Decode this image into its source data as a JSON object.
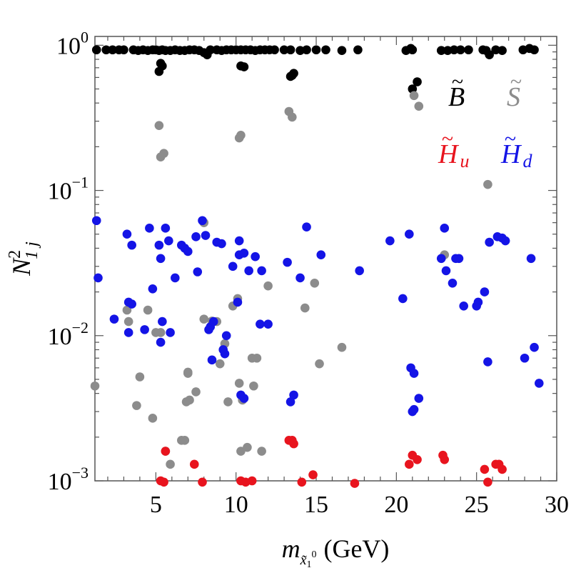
{
  "chart_data": {
    "type": "scatter",
    "title": "",
    "xlabel": "m_{χ̃1^0} (GeV)",
    "xlabel_parts": {
      "var": "m",
      "sub": "x̃",
      "subsub": "1",
      "sup": "0",
      "unit": "(GeV)"
    },
    "ylabel_parts": {
      "var": "N",
      "sup": "2",
      "sub": "1 j"
    },
    "xlim": [
      1.2,
      30
    ],
    "ylim": [
      0.001,
      1.15
    ],
    "yscale": "log",
    "x_ticks": [
      "5",
      "10",
      "15",
      "20",
      "25",
      "30"
    ],
    "x_tick_values": [
      5,
      10,
      15,
      20,
      25,
      30
    ],
    "y_ticks": [
      {
        "value": 1,
        "base": "10",
        "exp": "0"
      },
      {
        "value": 0.1,
        "base": "10",
        "exp": "−1"
      },
      {
        "value": 0.01,
        "base": "10",
        "exp": "−2"
      },
      {
        "value": 0.001,
        "base": "10",
        "exp": "−3"
      }
    ],
    "legend": [
      {
        "symbol": "B",
        "tilde": "~",
        "sub": "",
        "color": "#000000"
      },
      {
        "symbol": "S",
        "tilde": "~",
        "sub": "",
        "color": "#8c8c8c"
      },
      {
        "symbol": "H",
        "tilde": "~",
        "sub": "u",
        "color": "#e8141e"
      },
      {
        "symbol": "H",
        "tilde": "~",
        "sub": "d",
        "color": "#1414e6"
      }
    ],
    "series": [
      {
        "name": "B",
        "color": "#000000",
        "points": [
          [
            1.3,
            0.93
          ],
          [
            1.9,
            0.93
          ],
          [
            2.3,
            0.93
          ],
          [
            2.7,
            0.93
          ],
          [
            3.0,
            0.93
          ],
          [
            3.6,
            0.93
          ],
          [
            3.9,
            0.92
          ],
          [
            4.2,
            0.93
          ],
          [
            4.5,
            0.92
          ],
          [
            4.8,
            0.93
          ],
          [
            5.0,
            0.93
          ],
          [
            5.2,
            0.92
          ],
          [
            5.4,
            0.93
          ],
          [
            5.3,
            0.75
          ],
          [
            5.4,
            0.72
          ],
          [
            5.2,
            0.66
          ],
          [
            5.6,
            0.92
          ],
          [
            5.9,
            0.92
          ],
          [
            6.2,
            0.93
          ],
          [
            6.5,
            0.92
          ],
          [
            6.8,
            0.92
          ],
          [
            7.1,
            0.93
          ],
          [
            7.4,
            0.93
          ],
          [
            7.7,
            0.92
          ],
          [
            8.0,
            0.89
          ],
          [
            8.2,
            0.86
          ],
          [
            8.4,
            0.93
          ],
          [
            8.8,
            0.93
          ],
          [
            9.1,
            0.92
          ],
          [
            9.4,
            0.93
          ],
          [
            9.7,
            0.93
          ],
          [
            10.0,
            0.93
          ],
          [
            10.3,
            0.93
          ],
          [
            10.3,
            0.72
          ],
          [
            10.5,
            0.71
          ],
          [
            10.6,
            0.93
          ],
          [
            10.9,
            0.93
          ],
          [
            11.2,
            0.92
          ],
          [
            11.5,
            0.93
          ],
          [
            11.8,
            0.93
          ],
          [
            12.1,
            0.93
          ],
          [
            12.4,
            0.93
          ],
          [
            13.0,
            0.93
          ],
          [
            13.4,
            0.93
          ],
          [
            13.4,
            0.61
          ],
          [
            13.5,
            0.62
          ],
          [
            13.6,
            0.64
          ],
          [
            14.0,
            0.92
          ],
          [
            14.4,
            0.93
          ],
          [
            15.0,
            0.93
          ],
          [
            15.6,
            0.93
          ],
          [
            16.6,
            0.92
          ],
          [
            17.6,
            0.93
          ],
          [
            20.6,
            0.92
          ],
          [
            20.9,
            0.95
          ],
          [
            21.0,
            0.93
          ],
          [
            21.0,
            0.5
          ],
          [
            21.3,
            0.56
          ],
          [
            22.8,
            0.92
          ],
          [
            23.2,
            0.92
          ],
          [
            23.6,
            0.93
          ],
          [
            24.0,
            0.93
          ],
          [
            24.5,
            0.93
          ],
          [
            25.4,
            0.93
          ],
          [
            25.6,
            0.92
          ],
          [
            25.8,
            0.86
          ],
          [
            26.2,
            0.93
          ],
          [
            26.6,
            0.92
          ],
          [
            27.9,
            0.93
          ],
          [
            28.3,
            0.95
          ],
          [
            28.6,
            0.93
          ]
        ]
      },
      {
        "name": "S",
        "color": "#8c8c8c",
        "points": [
          [
            5.2,
            0.28
          ],
          [
            5.3,
            0.17
          ],
          [
            5.5,
            0.18
          ],
          [
            8.0,
            0.06
          ],
          [
            10.3,
            0.24
          ],
          [
            10.2,
            0.23
          ],
          [
            13.3,
            0.35
          ],
          [
            13.5,
            0.32
          ],
          [
            21.1,
            0.45
          ],
          [
            21.4,
            0.38
          ],
          [
            25.7,
            0.11
          ],
          [
            1.2,
            0.0045
          ],
          [
            3.2,
            0.015
          ],
          [
            3.8,
            0.0033
          ],
          [
            4.0,
            0.0052
          ],
          [
            4.5,
            0.015
          ],
          [
            4.8,
            0.0027
          ],
          [
            5.0,
            0.0105
          ],
          [
            5.3,
            0.0105
          ],
          [
            5.6,
            0.0016
          ],
          [
            5.9,
            0.0013
          ],
          [
            6.6,
            0.0019
          ],
          [
            6.8,
            0.0019
          ],
          [
            7.0,
            0.0056
          ],
          [
            6.9,
            0.0035
          ],
          [
            7.5,
            0.0041
          ],
          [
            7.0,
            0.0055
          ],
          [
            7.1,
            0.0036
          ],
          [
            8.0,
            0.013
          ],
          [
            8.5,
            0.0126
          ],
          [
            8.8,
            0.0125
          ],
          [
            9.0,
            0.0064
          ],
          [
            9.3,
            0.0088
          ],
          [
            9.5,
            0.0035
          ],
          [
            9.8,
            0.016
          ],
          [
            10.1,
            0.018
          ],
          [
            10.3,
            0.0016
          ],
          [
            10.2,
            0.0047
          ],
          [
            10.4,
            0.0036
          ],
          [
            10.7,
            0.0017
          ],
          [
            11.0,
            0.007
          ],
          [
            11.1,
            0.0045
          ],
          [
            11.3,
            0.007
          ],
          [
            11.6,
            0.0016
          ],
          [
            12.0,
            0.022
          ],
          [
            14.3,
            0.0155
          ],
          [
            14.9,
            0.023
          ],
          [
            15.2,
            0.0064
          ],
          [
            16.6,
            0.0083
          ],
          [
            23.0,
            0.036
          ],
          [
            3.3,
            0.0125
          ]
        ]
      },
      {
        "name": "H_u",
        "color": "#e8141e",
        "points": [
          [
            5.3,
            0.001
          ],
          [
            5.5,
            0.00098
          ],
          [
            5.6,
            0.0016
          ],
          [
            7.4,
            0.0013
          ],
          [
            7.9,
            0.00098
          ],
          [
            10.3,
            0.001
          ],
          [
            10.6,
            0.00098
          ],
          [
            11.0,
            0.001
          ],
          [
            13.3,
            0.0019
          ],
          [
            13.5,
            0.0019
          ],
          [
            13.6,
            0.0018
          ],
          [
            14.1,
            0.00098
          ],
          [
            14.8,
            0.0011
          ],
          [
            17.4,
            0.00096
          ],
          [
            20.8,
            0.0013
          ],
          [
            21.0,
            0.0015
          ],
          [
            21.3,
            0.0014
          ],
          [
            22.9,
            0.0015
          ],
          [
            23.0,
            0.0014
          ],
          [
            25.5,
            0.0012
          ],
          [
            25.7,
            0.00098
          ],
          [
            26.2,
            0.0013
          ],
          [
            26.4,
            0.0013
          ],
          [
            26.6,
            0.0012
          ]
        ]
      },
      {
        "name": "H_d",
        "color": "#1414e6",
        "points": [
          [
            1.3,
            0.062
          ],
          [
            1.4,
            0.025
          ],
          [
            2.4,
            0.013
          ],
          [
            3.2,
            0.05
          ],
          [
            3.5,
            0.042
          ],
          [
            3.3,
            0.017
          ],
          [
            3.3,
            0.0105
          ],
          [
            3.5,
            0.0165
          ],
          [
            4.3,
            0.011
          ],
          [
            4.6,
            0.055
          ],
          [
            4.8,
            0.021
          ],
          [
            5.2,
            0.042
          ],
          [
            5.3,
            0.034
          ],
          [
            5.6,
            0.055
          ],
          [
            5.3,
            0.009
          ],
          [
            5.4,
            0.0125
          ],
          [
            5.8,
            0.045
          ],
          [
            5.9,
            0.0105
          ],
          [
            6.2,
            0.025
          ],
          [
            6.6,
            0.042
          ],
          [
            6.8,
            0.04
          ],
          [
            7.0,
            0.038
          ],
          [
            7.5,
            0.048
          ],
          [
            7.6,
            0.0275
          ],
          [
            7.9,
            0.062
          ],
          [
            8.1,
            0.049
          ],
          [
            8.3,
            0.011
          ],
          [
            8.4,
            0.0115
          ],
          [
            8.5,
            0.0068
          ],
          [
            8.6,
            0.0125
          ],
          [
            8.8,
            0.044
          ],
          [
            9.1,
            0.043
          ],
          [
            9.2,
            0.008
          ],
          [
            9.4,
            0.01
          ],
          [
            9.3,
            0.0075
          ],
          [
            9.8,
            0.03
          ],
          [
            10.1,
            0.017
          ],
          [
            10.2,
            0.045
          ],
          [
            10.2,
            0.036
          ],
          [
            10.5,
            0.037
          ],
          [
            10.3,
            0.0039
          ],
          [
            10.5,
            0.0037
          ],
          [
            10.8,
            0.028
          ],
          [
            11.2,
            0.035
          ],
          [
            11.6,
            0.028
          ],
          [
            11.5,
            0.012
          ],
          [
            12.0,
            0.012
          ],
          [
            13.2,
            0.032
          ],
          [
            13.4,
            0.0035
          ],
          [
            13.6,
            0.0039
          ],
          [
            14.0,
            0.025
          ],
          [
            14.4,
            0.056
          ],
          [
            15.3,
            0.036
          ],
          [
            17.7,
            0.028
          ],
          [
            19.6,
            0.045
          ],
          [
            20.4,
            0.018
          ],
          [
            20.8,
            0.05
          ],
          [
            20.9,
            0.006
          ],
          [
            21.1,
            0.0055
          ],
          [
            21.1,
            0.0031
          ],
          [
            21.0,
            0.003
          ],
          [
            21.4,
            0.0037
          ],
          [
            22.8,
            0.034
          ],
          [
            23.0,
            0.055
          ],
          [
            23.1,
            0.028
          ],
          [
            23.5,
            0.023
          ],
          [
            23.7,
            0.034
          ],
          [
            23.9,
            0.034
          ],
          [
            24.2,
            0.016
          ],
          [
            25.0,
            0.016
          ],
          [
            25.1,
            0.017
          ],
          [
            25.5,
            0.02
          ],
          [
            25.7,
            0.0066
          ],
          [
            25.8,
            0.044
          ],
          [
            26.3,
            0.048
          ],
          [
            26.6,
            0.047
          ],
          [
            26.8,
            0.045
          ],
          [
            28.0,
            0.007
          ],
          [
            28.4,
            0.034
          ],
          [
            28.6,
            0.0083
          ],
          [
            28.9,
            0.0047
          ]
        ]
      }
    ]
  }
}
